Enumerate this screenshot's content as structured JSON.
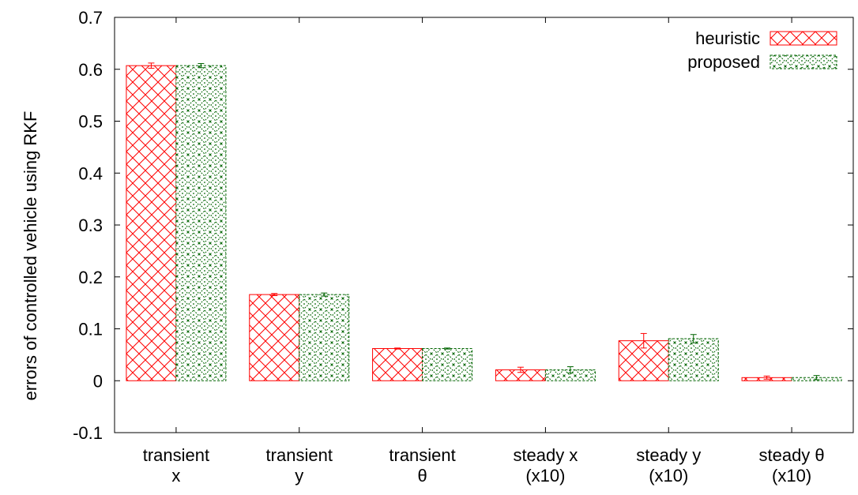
{
  "chart_data": {
    "type": "bar",
    "ylabel": "errors of controlled vehicle using RKF",
    "ylim": [
      -0.1,
      0.7
    ],
    "yticks": [
      -0.1,
      0,
      0.1,
      0.2,
      0.3,
      0.4,
      0.5,
      0.6,
      0.7
    ],
    "ytick_labels": [
      "-0.1",
      "0",
      "0.1",
      "0.2",
      "0.3",
      "0.4",
      "0.5",
      "0.6",
      "0.7"
    ],
    "grid": false,
    "legend_position": "top-right",
    "categories": [
      {
        "line1": "transient",
        "line2": "x"
      },
      {
        "line1": "transient",
        "line2": "y"
      },
      {
        "line1": "transient",
        "line2": "θ"
      },
      {
        "line1": "steady x",
        "line2": "(x10)"
      },
      {
        "line1": "steady y",
        "line2": "(x10)"
      },
      {
        "line1": "steady θ",
        "line2": "(x10)"
      }
    ],
    "series": [
      {
        "name": "heuristic",
        "color": "#ff0000",
        "pattern": "crosshatch",
        "values": [
          0.607,
          0.166,
          0.062,
          0.021,
          0.077,
          0.006
        ],
        "errors": [
          0.005,
          0.002,
          0.001,
          0.005,
          0.014,
          0.003
        ]
      },
      {
        "name": "proposed",
        "color": "#006400",
        "pattern": "diamond-dots",
        "values": [
          0.607,
          0.166,
          0.062,
          0.021,
          0.081,
          0.006
        ],
        "errors": [
          0.004,
          0.003,
          0.001,
          0.006,
          0.008,
          0.004
        ]
      }
    ]
  }
}
